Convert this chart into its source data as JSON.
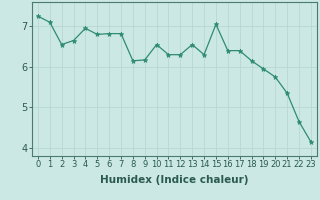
{
  "x": [
    0,
    1,
    2,
    3,
    4,
    5,
    6,
    7,
    8,
    9,
    10,
    11,
    12,
    13,
    14,
    15,
    16,
    17,
    18,
    19,
    20,
    21,
    22,
    23
  ],
  "y": [
    7.25,
    7.1,
    6.55,
    6.65,
    6.95,
    6.8,
    6.82,
    6.82,
    6.15,
    6.17,
    6.55,
    6.3,
    6.3,
    6.55,
    6.3,
    7.05,
    6.4,
    6.4,
    6.15,
    5.95,
    5.75,
    5.35,
    4.65,
    4.15
  ],
  "line_color": "#2e8b74",
  "marker": "*",
  "marker_size": 3.5,
  "bg_color": "#cce8e4",
  "grid_color": "#b8d8d4",
  "xlabel": "Humidex (Indice chaleur)",
  "xlabel_fontsize": 7.5,
  "tick_fontsize": 6,
  "ylim": [
    3.8,
    7.6
  ],
  "xlim": [
    -0.5,
    23.5
  ],
  "yticks": [
    4,
    5,
    6,
    7
  ],
  "xticks": [
    0,
    1,
    2,
    3,
    4,
    5,
    6,
    7,
    8,
    9,
    10,
    11,
    12,
    13,
    14,
    15,
    16,
    17,
    18,
    19,
    20,
    21,
    22,
    23
  ],
  "axis_color": "#4a7a70",
  "text_color": "#2a5a50"
}
